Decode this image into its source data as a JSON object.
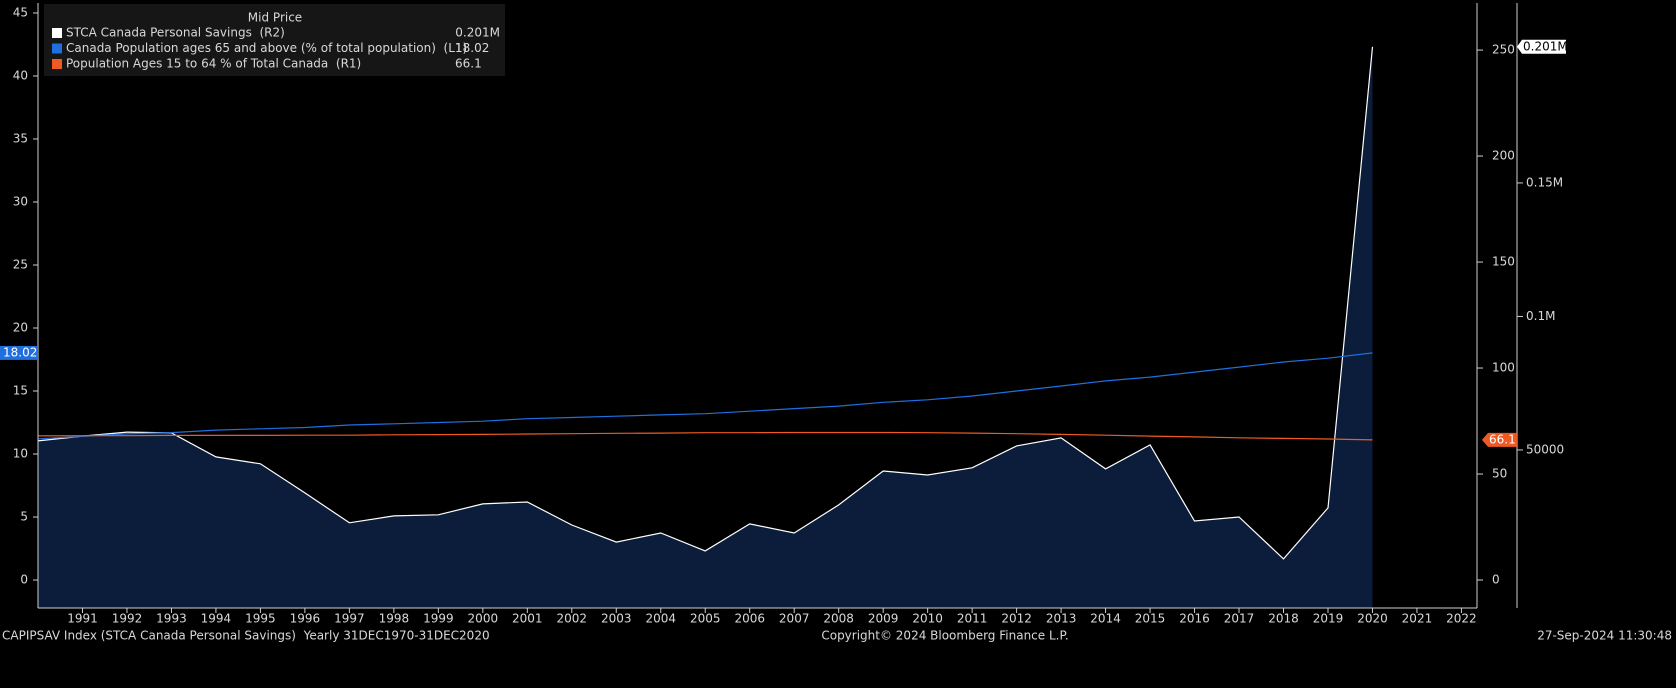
{
  "chart_data": {
    "type": "line",
    "title": "Mid Price",
    "footer_left": "CAPIPSAV Index (STCA Canada Personal Savings)  Yearly 31DEC1970-31DEC2020",
    "footer_center": "Copyright© 2024 Bloomberg Finance L.P.",
    "footer_right": "27-Sep-2024 11:30:48",
    "x": [
      1990,
      1991,
      1992,
      1993,
      1994,
      1995,
      1996,
      1997,
      1998,
      1999,
      2000,
      2001,
      2002,
      2003,
      2004,
      2005,
      2006,
      2007,
      2008,
      2009,
      2010,
      2011,
      2012,
      2013,
      2014,
      2015,
      2016,
      2017,
      2018,
      2019,
      2020
    ],
    "xlim": [
      1990,
      2022.35
    ],
    "xticks": [
      1991,
      1992,
      1993,
      1994,
      1995,
      1996,
      1997,
      1998,
      1999,
      2000,
      2001,
      2002,
      2003,
      2004,
      2005,
      2006,
      2007,
      2008,
      2009,
      2010,
      2011,
      2012,
      2013,
      2014,
      2015,
      2016,
      2017,
      2018,
      2019,
      2020,
      2021,
      2022
    ],
    "ylim": [
      -2.22,
      45.79
    ],
    "yticks": [
      0,
      5,
      10,
      15,
      20,
      25,
      30,
      35,
      40,
      45
    ],
    "y2lim": [
      -13.2,
      272.2
    ],
    "y2ticks": [
      0,
      50,
      100,
      150,
      200,
      250
    ],
    "y3lim": [
      -9200,
      217400
    ],
    "y3ticks": [
      50000,
      {
        "value": 100000,
        "label": "0.1M"
      },
      {
        "value": 150000,
        "label": "0.15M"
      }
    ],
    "series": [
      {
        "name": "STCA Canada Personal Savings  (R2)",
        "color": "#ffffff",
        "area": true,
        "fill_color": "#0b1d3a",
        "axis": "y3",
        "last_label": "0.201M",
        "values": [
          53400,
          55200,
          56700,
          56400,
          47400,
          44800,
          33900,
          22700,
          25300,
          25700,
          29800,
          30500,
          21900,
          15500,
          18900,
          12200,
          22300,
          18900,
          29400,
          42100,
          40600,
          43300,
          51500,
          54500,
          42900,
          51900,
          23400,
          24900,
          9200,
          28300,
          201000
        ]
      },
      {
        "name": "Canada Population ages 65 and above (% of total population)  (L1)",
        "color": "#1f6fe0",
        "axis": "y",
        "last_label": "18.02",
        "values": [
          11.2,
          11.4,
          11.6,
          11.7,
          11.9,
          12.0,
          12.1,
          12.3,
          12.4,
          12.5,
          12.6,
          12.8,
          12.9,
          13.0,
          13.1,
          13.2,
          13.4,
          13.6,
          13.8,
          14.1,
          14.3,
          14.6,
          15.0,
          15.4,
          15.8,
          16.1,
          16.5,
          16.9,
          17.3,
          17.6,
          18.02
        ]
      },
      {
        "name": "Population Ages 15 to 64 % of Total Canada  (R1)",
        "color": "#f05a22",
        "axis": "y2",
        "last_label": "66.1",
        "values": [
          68.0,
          68.1,
          68.1,
          68.2,
          68.2,
          68.2,
          68.3,
          68.3,
          68.5,
          68.6,
          68.7,
          68.9,
          69.0,
          69.2,
          69.3,
          69.5,
          69.5,
          69.6,
          69.6,
          69.6,
          69.5,
          69.3,
          69.0,
          68.7,
          68.3,
          67.9,
          67.5,
          67.1,
          66.8,
          66.5,
          66.1
        ]
      }
    ]
  }
}
